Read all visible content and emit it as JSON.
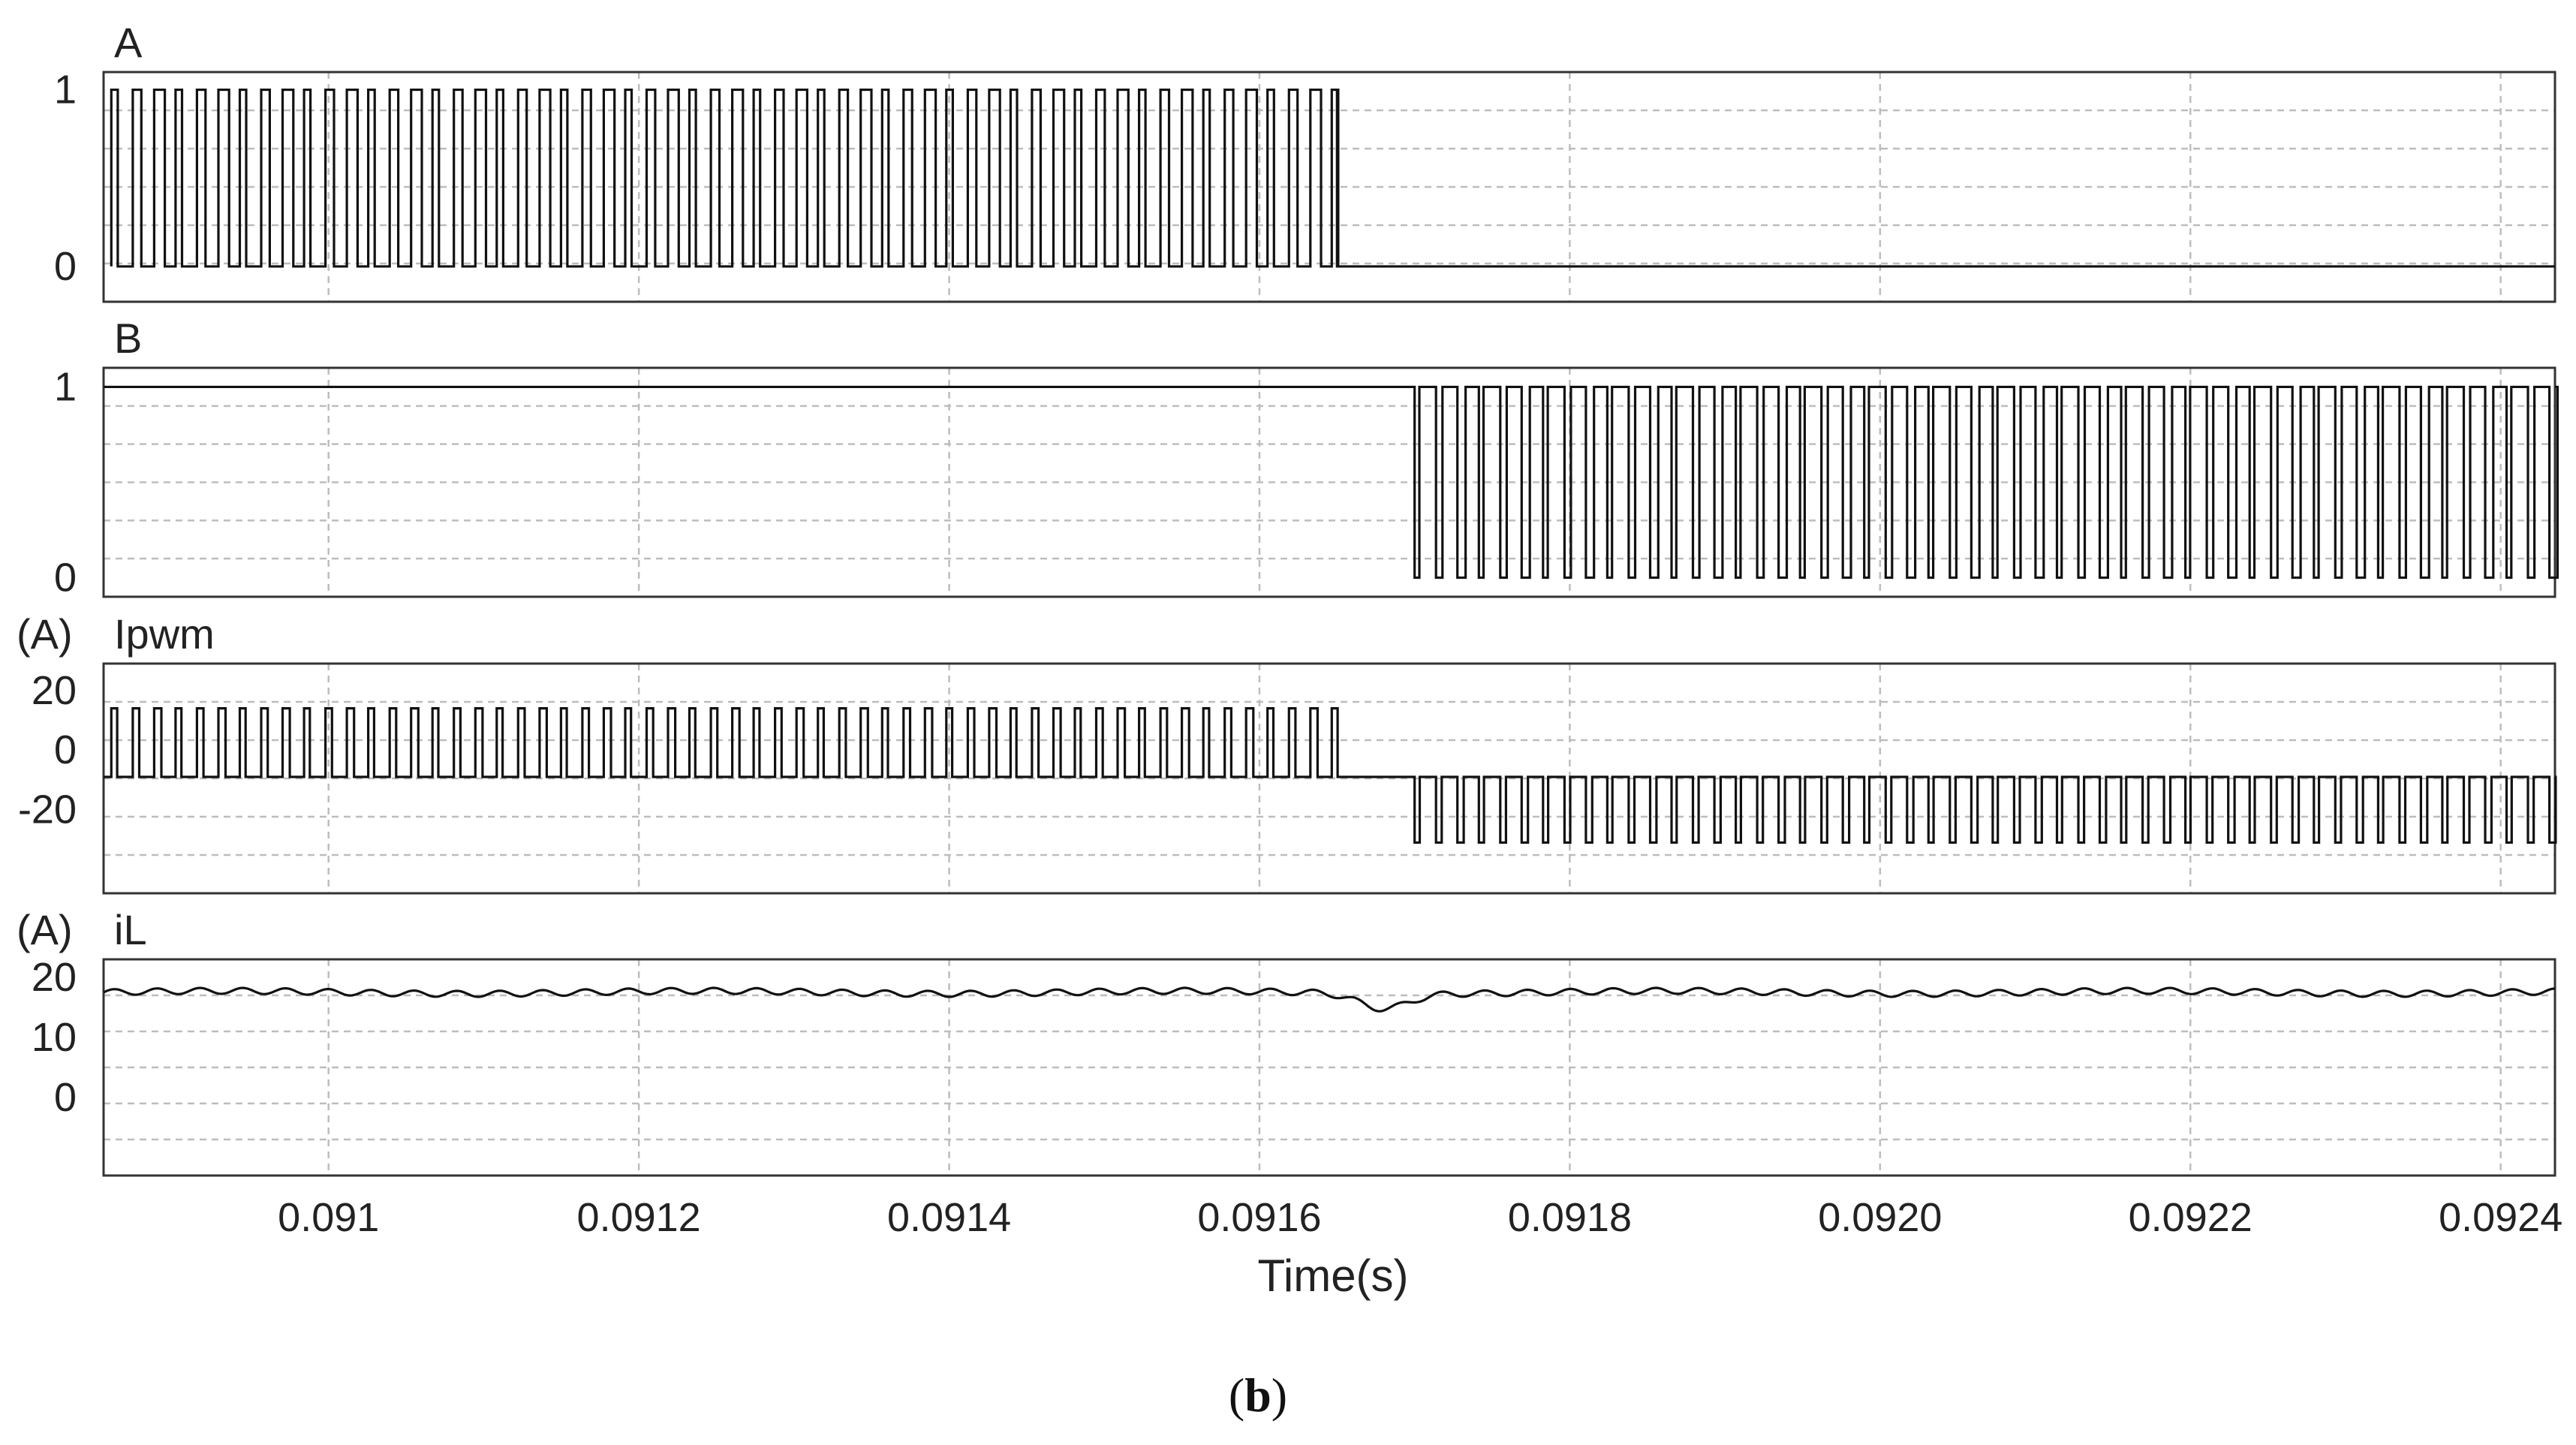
{
  "chart_data": [
    {
      "type": "line",
      "name": "A",
      "unit_label": "",
      "yticks": [
        {
          "value": 1,
          "label": "1"
        },
        {
          "value": 0,
          "label": "0"
        }
      ],
      "ylim": [
        -0.2,
        1.1
      ],
      "active_range_s": [
        0.09086,
        0.09165
      ],
      "pulse_period_s": 1.38e-05,
      "high": 1,
      "low": 0,
      "after_active": 0
    },
    {
      "type": "line",
      "name": "B",
      "unit_label": "",
      "yticks": [
        {
          "value": 1,
          "label": "1"
        },
        {
          "value": 0,
          "label": "0"
        }
      ],
      "ylim": [
        -0.1,
        1.1
      ],
      "steady_level": 1,
      "active_range_s": [
        0.0917,
        0.09244
      ],
      "pulse_period_s": 1.38e-05,
      "high": 1,
      "low": 0
    },
    {
      "type": "line",
      "name": "Ipwm",
      "unit_label": "(A)",
      "yticks": [
        {
          "value": 20,
          "label": "20"
        },
        {
          "value": 0,
          "label": "0"
        },
        {
          "value": -20,
          "label": "-20"
        }
      ],
      "ylim": [
        -48,
        29
      ],
      "segments": [
        {
          "range_s": [
            0.09086,
            0.09165
          ],
          "baseline": -9,
          "peak": 14
        },
        {
          "range_s": [
            0.0917,
            0.09244
          ],
          "baseline": -9,
          "peak": -31
        }
      ],
      "pulse_period_s": 1.38e-05
    },
    {
      "type": "line",
      "name": "iL",
      "unit_label": "(A)",
      "yticks": [
        {
          "value": 20,
          "label": "20"
        },
        {
          "value": 10,
          "label": "10"
        },
        {
          "value": 0,
          "label": "0"
        }
      ],
      "ylim": [
        -13,
        23
      ],
      "mean": 17.5,
      "ripple_amplitude": 0.5,
      "dip": {
        "time_s": 0.09168,
        "depth": 2.5
      }
    }
  ],
  "x_axis": {
    "title": "Time(s)",
    "xlim": [
      0.090855,
      0.092435
    ],
    "ticks": [
      {
        "value": 0.091,
        "label": "0.091"
      },
      {
        "value": 0.0912,
        "label": "0.0912"
      },
      {
        "value": 0.0914,
        "label": "0.0914"
      },
      {
        "value": 0.0916,
        "label": "0.0916"
      },
      {
        "value": 0.0918,
        "label": "0.0918"
      },
      {
        "value": 0.092,
        "label": "0.0920"
      },
      {
        "value": 0.0922,
        "label": "0.0922"
      },
      {
        "value": 0.0924,
        "label": "0.0924"
      }
    ]
  },
  "caption": {
    "open": "(",
    "letter": "b",
    "close": ")"
  },
  "colors": {
    "trace": "#111111",
    "grid": "#bdbdbd",
    "frame": "#333333"
  }
}
